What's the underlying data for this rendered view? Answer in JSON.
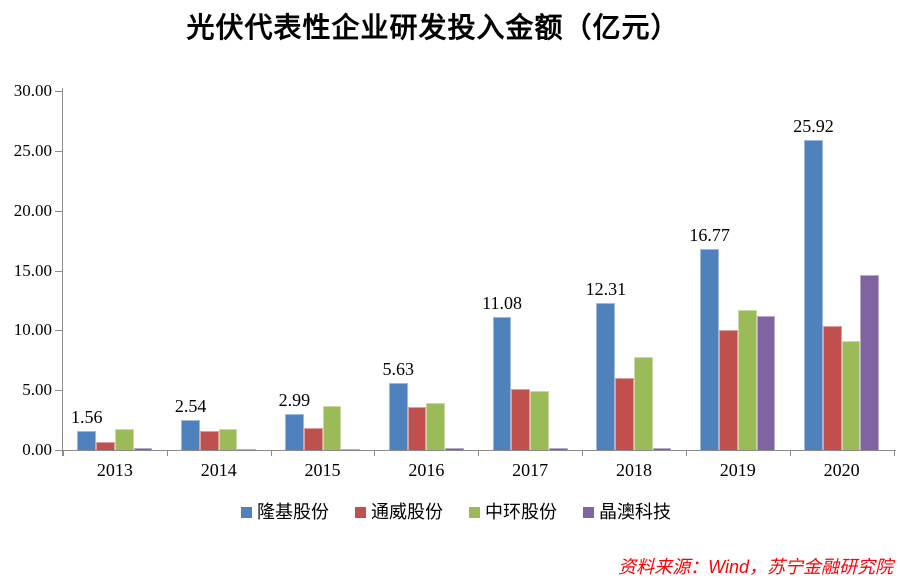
{
  "chart_data": {
    "type": "bar",
    "title": "光伏代表性企业研发投入金额（亿元）",
    "categories": [
      "2013",
      "2014",
      "2015",
      "2016",
      "2017",
      "2018",
      "2019",
      "2020"
    ],
    "series": [
      {
        "name": "隆基股份",
        "color": "#4F81BD",
        "values": [
          1.56,
          2.54,
          2.99,
          5.63,
          11.08,
          12.31,
          16.77,
          25.92
        ],
        "labels": [
          "1.56",
          "2.54",
          "2.99",
          "5.63",
          "11.08",
          "12.31",
          "16.77",
          "25.92"
        ]
      },
      {
        "name": "通威股份",
        "color": "#C0504D",
        "values": [
          0.68,
          1.55,
          1.82,
          3.6,
          5.1,
          6.0,
          10.0,
          10.4
        ]
      },
      {
        "name": "中环股份",
        "color": "#9BBB59",
        "values": [
          1.75,
          1.72,
          3.7,
          3.9,
          4.9,
          7.8,
          11.7,
          9.1
        ]
      },
      {
        "name": "晶澳科技",
        "color": "#8064A2",
        "values": [
          0.15,
          0.1,
          0.1,
          0.18,
          0.2,
          0.2,
          11.2,
          14.6
        ]
      }
    ],
    "ylim": [
      0,
      30
    ],
    "ytick_step": 5,
    "ytick_labels": [
      "0.00",
      "5.00",
      "10.00",
      "15.00",
      "20.00",
      "25.00",
      "30.00"
    ],
    "xlabel": "",
    "ylabel": "",
    "grid": false,
    "legend_position": "bottom",
    "data_labels_on_series": "隆基股份"
  },
  "source_note": "资料来源：Wind，苏宁金融研究院",
  "colors": {
    "axis": "#8c8c8c",
    "text": "#000000",
    "source_text": "#ff0000"
  }
}
